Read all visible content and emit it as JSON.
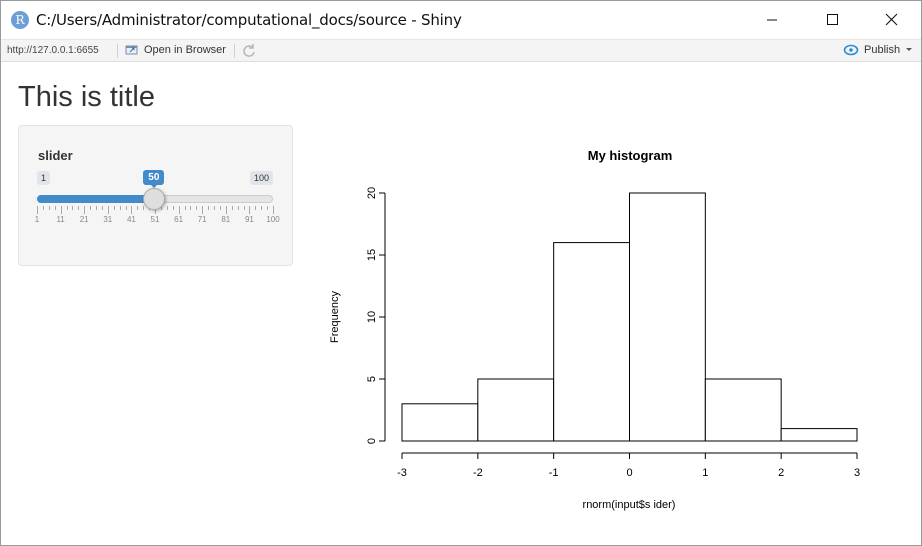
{
  "window": {
    "title": "C:/Users/Administrator/computational_docs/source - Shiny",
    "app_icon_letter": "R",
    "controls": [
      "minimize-icon",
      "maximize-icon",
      "close-icon"
    ]
  },
  "toolbar": {
    "url": "http://127.0.0.1:6655",
    "open_in_browser_label": "Open in Browser",
    "publish_label": "Publish",
    "icons": [
      "open-in-browser-icon",
      "refresh-icon",
      "publish-icon",
      "chevron-down-icon"
    ]
  },
  "page": {
    "title": "This is title"
  },
  "slider": {
    "label": "slider",
    "min": 1,
    "max": 100,
    "value": 50,
    "min_label": "1",
    "max_label": "100",
    "value_label": "50",
    "grid_labels": [
      "1",
      "11",
      "21",
      "31",
      "41",
      "51",
      "61",
      "71",
      "81",
      "91",
      "100"
    ],
    "accent_color": "#428bca"
  },
  "chart_data": {
    "type": "bar",
    "title": "My histogram",
    "xlabel": "rnorm(input$s ider)",
    "ylabel": "Frequency",
    "bins": [
      [
        -3,
        -2
      ],
      [
        -2,
        -1
      ],
      [
        -1,
        0
      ],
      [
        0,
        1
      ],
      [
        1,
        2
      ],
      [
        2,
        3
      ]
    ],
    "values": [
      3,
      5,
      16,
      20,
      5,
      1
    ],
    "x_ticks": [
      "-3",
      "-2",
      "-1",
      "0",
      "1",
      "2",
      "3"
    ],
    "y_ticks": [
      "0",
      "5",
      "10",
      "15",
      "20"
    ],
    "xlim": [
      -3,
      3
    ],
    "ylim": [
      0,
      20
    ],
    "grid": false
  }
}
